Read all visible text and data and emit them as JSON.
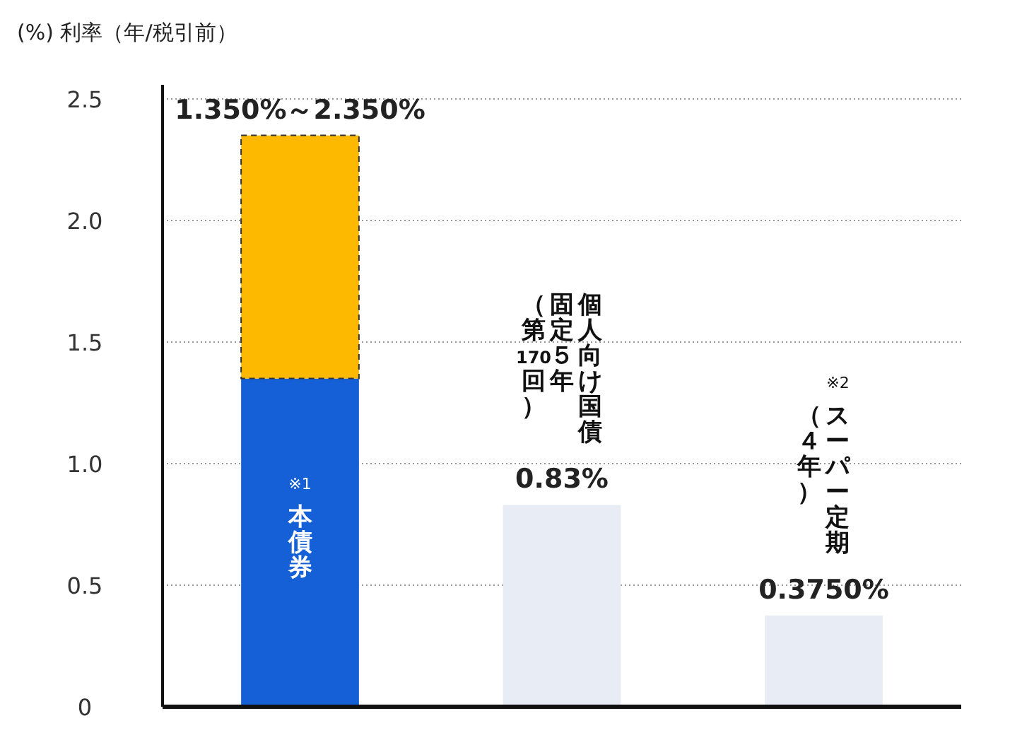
{
  "chart_data": {
    "type": "bar",
    "stacked": true,
    "ylabel": "(%) 利率（年/税引前）",
    "categories": [
      "本債券",
      "個人向け国債",
      "スーパー定期"
    ],
    "annotations": [
      {
        "text": "1.350%～2.350%",
        "x": "本債券",
        "y": 2.35
      },
      "※1",
      "固定５年",
      "（第170回）",
      "※2",
      "（４年）"
    ],
    "series": [
      {
        "colors": [
          "#1560d6",
          "#e8edf5",
          "#e8edf5"
        ],
        "values": [
          1.35,
          0.83,
          0.375
        ],
        "value_labels": [
          null,
          "0.83%",
          "0.3750%"
        ]
      },
      {
        "color": "#fdb900",
        "values": [
          1.0,
          null,
          null
        ],
        "line_style": "dashed"
      }
    ],
    "ylim": [
      0,
      2.5
    ],
    "yticks": [
      0,
      {
        "value": 0.5,
        "label": "0.5"
      },
      {
        "value": 1,
        "label": "1.0"
      },
      {
        "value": 1.5,
        "label": "1.5"
      },
      {
        "value": 2,
        "label": "2.0"
      },
      {
        "value": 2.5,
        "label": "2.5"
      }
    ],
    "grid": "y"
  }
}
